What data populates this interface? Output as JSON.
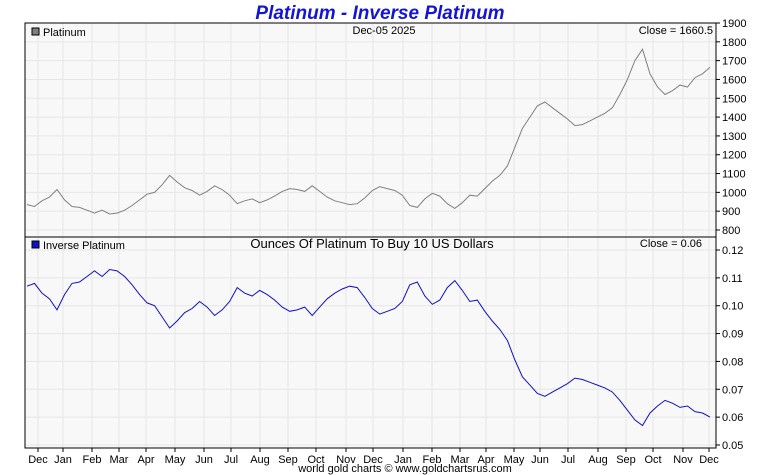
{
  "title": "Platinum - Inverse Platinum",
  "footer": "world gold charts © www.goldchartsrus.com",
  "chart_data": [
    {
      "type": "line",
      "legend": "Platinum",
      "date_label": "Dec-05  2025",
      "close_label": "Close = 1660.5",
      "line_color": "#808080",
      "legend_color": "#808080",
      "ylim": [
        800,
        1900
      ],
      "yticks": [
        "1900",
        "1800",
        "1700",
        "1600",
        "1500",
        "1400",
        "1300",
        "1200",
        "1100",
        "1000",
        "900",
        "800"
      ],
      "months": [
        "Dec",
        "Jan",
        "Feb",
        "Mar",
        "Apr",
        "May",
        "Jun",
        "Jul",
        "Aug",
        "Sep",
        "Oct",
        "Nov",
        "Dec"
      ],
      "series": [
        {
          "values": [
            935,
            925,
            955,
            975,
            1015,
            960,
            925,
            920,
            905,
            890,
            905,
            885,
            890,
            905,
            930,
            960,
            990,
            1000,
            1040,
            1090,
            1055,
            1025,
            1010,
            985,
            1005,
            1035,
            1015,
            985,
            940,
            955,
            965,
            945,
            960,
            980,
            1005,
            1020,
            1015,
            1005,
            1035,
            1005,
            975,
            955,
            945,
            935,
            940,
            970,
            1010,
            1030,
            1020,
            1010,
            985,
            930,
            920,
            965,
            995,
            980,
            940,
            915,
            945,
            985,
            980,
            1020,
            1060,
            1090,
            1140,
            1240,
            1340,
            1400,
            1460,
            1480,
            1450,
            1420,
            1390,
            1355,
            1360,
            1380,
            1400,
            1420,
            1450,
            1520,
            1600,
            1700,
            1760,
            1630,
            1560,
            1520,
            1540,
            1570,
            1560,
            1610,
            1630,
            1665
          ]
        }
      ]
    },
    {
      "type": "line",
      "legend": "Inverse Platinum",
      "subtitle": "Ounces Of Platinum To Buy 10 US Dollars",
      "close_label": "Close = 0.06",
      "line_color": "#1010cc",
      "legend_color": "#1010cc",
      "ylim": [
        0.05,
        0.12
      ],
      "yticks": [
        "0.12",
        "0.11",
        "0.10",
        "0.09",
        "0.08",
        "0.07",
        "0.06",
        "0.05"
      ],
      "months": [
        "Dec",
        "Jan",
        "Feb",
        "Mar",
        "Apr",
        "May",
        "Jun",
        "Jul",
        "Aug",
        "Sep",
        "Oct",
        "Nov",
        "Dec"
      ],
      "series": [
        {
          "values": [
            0.107,
            0.108,
            0.1045,
            0.1025,
            0.0985,
            0.104,
            0.108,
            0.1085,
            0.1105,
            0.1125,
            0.1105,
            0.113,
            0.1125,
            0.1105,
            0.1075,
            0.104,
            0.101,
            0.1,
            0.096,
            0.092,
            0.0945,
            0.0975,
            0.099,
            0.1015,
            0.0995,
            0.0965,
            0.0985,
            0.1015,
            0.1065,
            0.1045,
            0.1035,
            0.1055,
            0.104,
            0.102,
            0.0995,
            0.098,
            0.0985,
            0.0995,
            0.0965,
            0.0995,
            0.1025,
            0.1045,
            0.106,
            0.107,
            0.1065,
            0.103,
            0.099,
            0.097,
            0.098,
            0.099,
            0.1015,
            0.1075,
            0.1085,
            0.1035,
            0.1005,
            0.102,
            0.1065,
            0.109,
            0.1055,
            0.1015,
            0.102,
            0.098,
            0.0945,
            0.0915,
            0.0875,
            0.0805,
            0.0745,
            0.0715,
            0.0685,
            0.0675,
            0.069,
            0.0705,
            0.072,
            0.074,
            0.0735,
            0.0725,
            0.0715,
            0.0705,
            0.069,
            0.066,
            0.0625,
            0.059,
            0.057,
            0.0615,
            0.064,
            0.066,
            0.065,
            0.0635,
            0.064,
            0.062,
            0.0615,
            0.06
          ]
        }
      ]
    }
  ]
}
